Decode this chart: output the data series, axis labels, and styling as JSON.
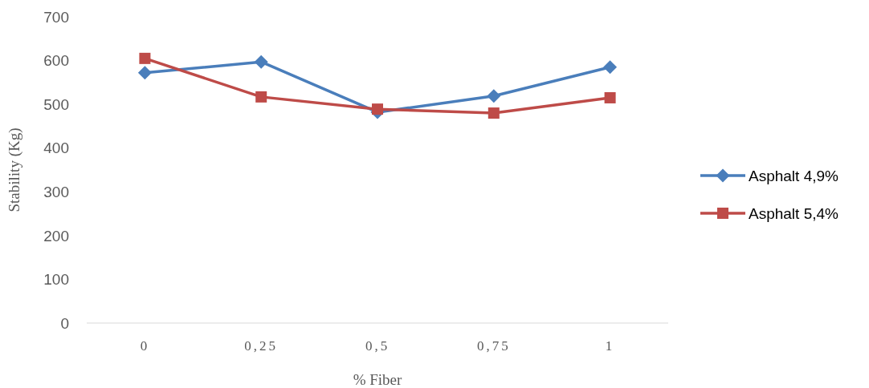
{
  "chart_data": {
    "type": "line",
    "xlabel": "% Fiber",
    "ylabel": "Stability (Kg)",
    "categories": [
      "0",
      "0,25",
      "0,5",
      "0,75",
      "1"
    ],
    "series": [
      {
        "name": "Asphalt 4,9%",
        "color": "#4a7ebb",
        "marker": "diamond",
        "values": [
          572,
          597,
          482,
          519,
          585
        ]
      },
      {
        "name": "Asphalt 5,4%",
        "color": "#be4b48",
        "marker": "square",
        "values": [
          605,
          517,
          489,
          480,
          515
        ]
      }
    ],
    "ylim": [
      0,
      700
    ],
    "yticks": [
      0,
      100,
      200,
      300,
      400,
      500,
      600,
      700
    ],
    "grid": false,
    "legend": "right",
    "line_style": "solid"
  }
}
